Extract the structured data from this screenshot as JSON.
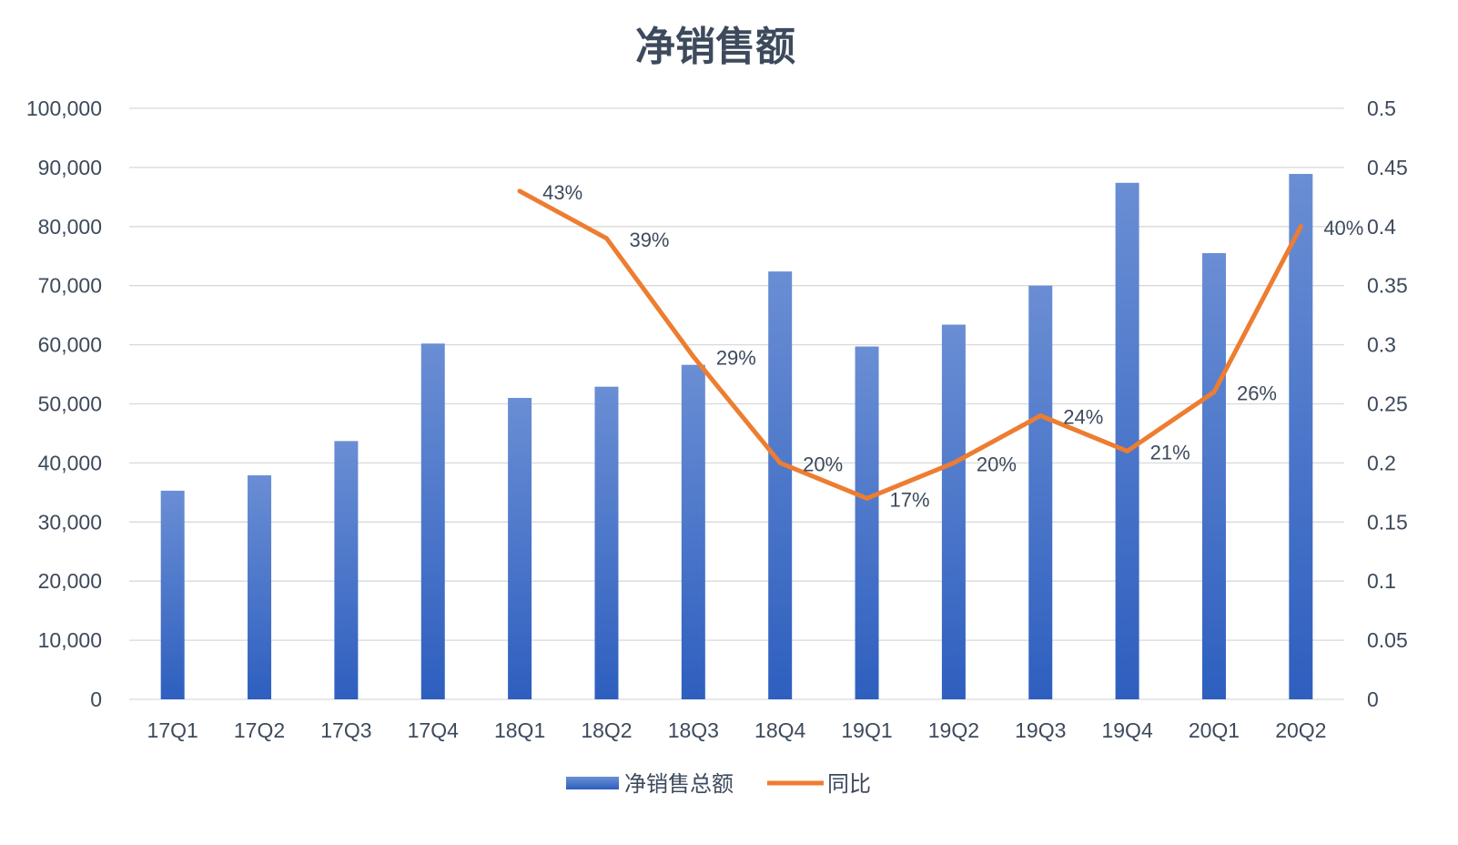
{
  "chart_data": {
    "type": "bar",
    "title": "净销售额",
    "categories": [
      "17Q1",
      "17Q2",
      "17Q3",
      "17Q4",
      "18Q1",
      "18Q2",
      "18Q3",
      "18Q4",
      "19Q1",
      "19Q2",
      "19Q3",
      "19Q4",
      "20Q1",
      "20Q2"
    ],
    "series": [
      {
        "name": "净销售总额",
        "type": "bar",
        "axis": "left",
        "color": "#4472c4",
        "values": [
          35300,
          37900,
          43700,
          60200,
          51000,
          52900,
          56600,
          72400,
          59700,
          63400,
          70000,
          87400,
          75500,
          88900
        ]
      },
      {
        "name": "同比",
        "type": "line",
        "axis": "right",
        "color": "#ed7d31",
        "values": [
          null,
          null,
          null,
          null,
          0.43,
          0.39,
          0.29,
          0.2,
          0.17,
          0.2,
          0.24,
          0.21,
          0.26,
          0.4
        ],
        "labels": [
          null,
          null,
          null,
          null,
          "43%",
          "39%",
          "29%",
          "20%",
          "17%",
          "20%",
          "24%",
          "21%",
          "26%",
          "40%"
        ]
      }
    ],
    "y_left": {
      "ylim": [
        0,
        100000
      ],
      "ticks": [
        "0",
        "10,000",
        "20,000",
        "30,000",
        "40,000",
        "50,000",
        "60,000",
        "70,000",
        "80,000",
        "90,000",
        "100,000"
      ]
    },
    "y_right": {
      "ylim": [
        0,
        0.5
      ],
      "ticks": [
        "0",
        "0.05",
        "0.1",
        "0.15",
        "0.2",
        "0.25",
        "0.3",
        "0.35",
        "0.4",
        "0.45",
        "0.5"
      ]
    },
    "grid": true,
    "legend": "bottom"
  }
}
